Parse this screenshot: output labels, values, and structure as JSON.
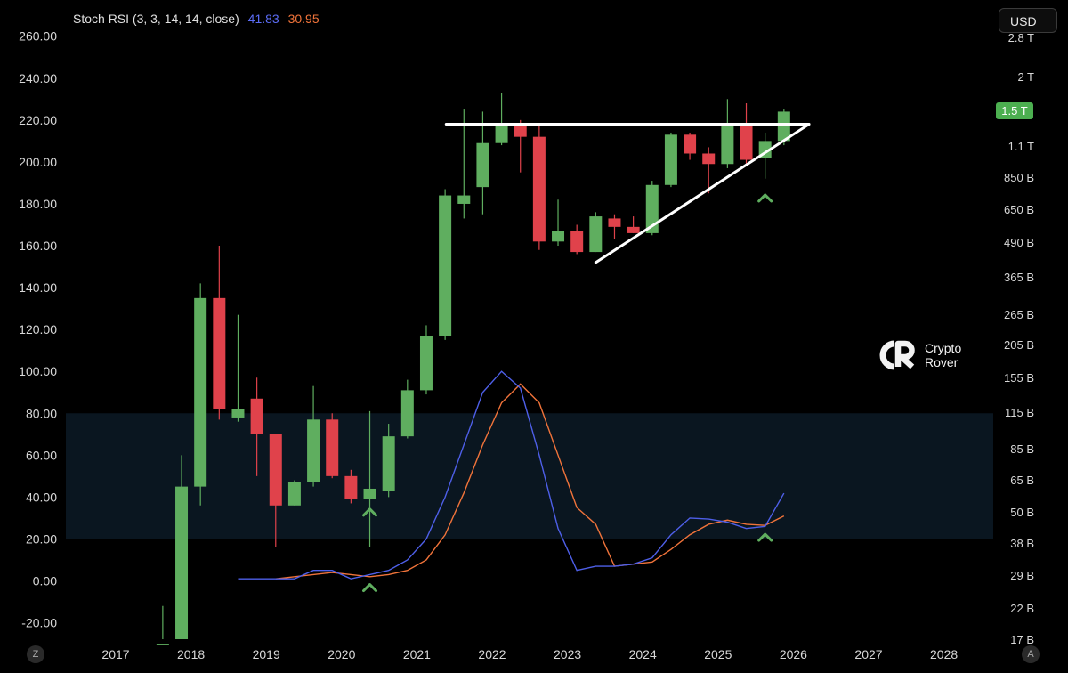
{
  "legend": {
    "name": "Stoch RSI (3, 3, 14, 14, close)",
    "k": "41.83",
    "d": "30.95"
  },
  "currency": "USD",
  "price_badge": "1.5 T",
  "brand": {
    "line1": "Crypto",
    "line2": "Rover"
  },
  "corners": {
    "left": "Z",
    "right": "A"
  },
  "colors": {
    "up": "#5fae5f",
    "down": "#e0424b",
    "k_line": "#4e5fe8",
    "d_line": "#f0733a",
    "zone": "#0a1620",
    "trendline": "#ffffff",
    "marker": "#5fae5f"
  },
  "chart_data": {
    "type": "candlestick",
    "left_axis": {
      "ticks": [
        "260.00",
        "240.00",
        "220.00",
        "200.00",
        "180.00",
        "160.00",
        "140.00",
        "120.00",
        "100.00",
        "80.00",
        "60.00",
        "40.00",
        "20.00",
        "0.00",
        "-20.00"
      ]
    },
    "right_axis": {
      "log_scale": true,
      "ticks": [
        "2.8 T",
        "2 T",
        "1.5 T",
        "1.1 T",
        "850 B",
        "650 B",
        "490 B",
        "365 B",
        "265 B",
        "205 B",
        "155 B",
        "115 B",
        "85 B",
        "65 B",
        "50 B",
        "38 B",
        "29 B",
        "22 B",
        "17 B"
      ]
    },
    "x_axis": {
      "ticks": [
        "2017",
        "2018",
        "2019",
        "2020",
        "2021",
        "2022",
        "2023",
        "2024",
        "2025",
        "2026",
        "2027",
        "2028"
      ]
    },
    "candles": [
      {
        "t": "2017-07",
        "o": -30,
        "h": -12,
        "l": -32,
        "c": -30
      },
      {
        "t": "2017-10",
        "o": -30,
        "h": 60,
        "l": -32,
        "c": 45
      },
      {
        "t": "2018-01",
        "o": 45,
        "h": 142,
        "l": 36,
        "c": 135
      },
      {
        "t": "2018-04",
        "o": 135,
        "h": 160,
        "l": 77,
        "c": 82
      },
      {
        "t": "2018-07",
        "o": 78,
        "h": 127,
        "l": 76,
        "c": 82
      },
      {
        "t": "2018-10",
        "o": 87,
        "h": 97,
        "l": 50,
        "c": 70
      },
      {
        "t": "2019-01",
        "o": 70,
        "h": 70,
        "l": 16,
        "c": 36
      },
      {
        "t": "2019-04",
        "o": 36,
        "h": 48,
        "l": 36,
        "c": 47
      },
      {
        "t": "2019-07",
        "o": 47,
        "h": 93,
        "l": 45,
        "c": 77
      },
      {
        "t": "2019-10",
        "o": 77,
        "h": 80,
        "l": 49,
        "c": 50
      },
      {
        "t": "2020-01",
        "o": 50,
        "h": 53,
        "l": 37,
        "c": 39
      },
      {
        "t": "2020-04",
        "o": 39,
        "h": 81,
        "l": 16,
        "c": 44
      },
      {
        "t": "2020-07",
        "o": 43,
        "h": 75,
        "l": 40,
        "c": 69
      },
      {
        "t": "2020-10",
        "o": 69,
        "h": 96,
        "l": 68,
        "c": 91
      },
      {
        "t": "2021-01",
        "o": 91,
        "h": 122,
        "l": 89,
        "c": 117
      },
      {
        "t": "2021-04",
        "o": 117,
        "h": 187,
        "l": 115,
        "c": 184
      },
      {
        "t": "2021-07",
        "o": 180,
        "h": 225,
        "l": 173,
        "c": 184
      },
      {
        "t": "2021-10",
        "o": 188,
        "h": 224,
        "l": 175,
        "c": 209
      },
      {
        "t": "2022-01",
        "o": 209,
        "h": 233,
        "l": 208,
        "c": 218
      },
      {
        "t": "2022-04",
        "o": 218,
        "h": 220,
        "l": 195,
        "c": 212
      },
      {
        "t": "2022-07",
        "o": 212,
        "h": 217,
        "l": 158,
        "c": 162
      },
      {
        "t": "2022-10",
        "o": 162,
        "h": 182,
        "l": 160,
        "c": 167
      },
      {
        "t": "2023-01",
        "o": 167,
        "h": 170,
        "l": 156,
        "c": 157
      },
      {
        "t": "2023-04",
        "o": 157,
        "h": 176,
        "l": 157,
        "c": 174
      },
      {
        "t": "2023-07",
        "o": 173,
        "h": 175,
        "l": 163,
        "c": 169
      },
      {
        "t": "2023-10",
        "o": 169,
        "h": 174,
        "l": 166,
        "c": 166
      },
      {
        "t": "2024-01",
        "o": 166,
        "h": 191,
        "l": 165,
        "c": 189
      },
      {
        "t": "2024-04",
        "o": 189,
        "h": 214,
        "l": 188,
        "c": 213
      },
      {
        "t": "2024-07",
        "o": 213,
        "h": 214,
        "l": 201,
        "c": 204
      },
      {
        "t": "2024-10",
        "o": 204,
        "h": 207,
        "l": 185,
        "c": 199
      },
      {
        "t": "2025-01",
        "o": 199,
        "h": 230,
        "l": 197,
        "c": 218
      },
      {
        "t": "2025-04",
        "o": 218,
        "h": 228,
        "l": 199,
        "c": 201
      },
      {
        "t": "2025-07",
        "o": 202,
        "h": 214,
        "l": 192,
        "c": 210
      },
      {
        "t": "2025-10",
        "o": 210,
        "h": 225,
        "l": 208,
        "c": 224
      }
    ],
    "stoch_rsi": {
      "zone": [
        20,
        80
      ],
      "k": [
        {
          "t": "2018-07",
          "v": 1
        },
        {
          "t": "2019-01",
          "v": 1
        },
        {
          "t": "2019-04",
          "v": 1
        },
        {
          "t": "2019-07",
          "v": 5
        },
        {
          "t": "2019-10",
          "v": 5
        },
        {
          "t": "2020-01",
          "v": 1
        },
        {
          "t": "2020-04",
          "v": 3
        },
        {
          "t": "2020-07",
          "v": 5
        },
        {
          "t": "2020-10",
          "v": 10
        },
        {
          "t": "2021-01",
          "v": 20
        },
        {
          "t": "2021-04",
          "v": 40
        },
        {
          "t": "2021-07",
          "v": 65
        },
        {
          "t": "2021-10",
          "v": 90
        },
        {
          "t": "2022-01",
          "v": 100
        },
        {
          "t": "2022-04",
          "v": 92
        },
        {
          "t": "2022-07",
          "v": 60
        },
        {
          "t": "2022-10",
          "v": 25
        },
        {
          "t": "2023-01",
          "v": 5
        },
        {
          "t": "2023-04",
          "v": 7
        },
        {
          "t": "2023-07",
          "v": 7
        },
        {
          "t": "2023-10",
          "v": 8
        },
        {
          "t": "2024-01",
          "v": 11
        },
        {
          "t": "2024-04",
          "v": 22
        },
        {
          "t": "2024-07",
          "v": 30
        },
        {
          "t": "2024-10",
          "v": 29.5
        },
        {
          "t": "2025-01",
          "v": 28
        },
        {
          "t": "2025-04",
          "v": 25
        },
        {
          "t": "2025-07",
          "v": 26
        },
        {
          "t": "2025-10",
          "v": 41.83
        }
      ],
      "d": [
        {
          "t": "2019-01",
          "v": 1
        },
        {
          "t": "2019-07",
          "v": 3
        },
        {
          "t": "2019-10",
          "v": 4
        },
        {
          "t": "2020-01",
          "v": 3
        },
        {
          "t": "2020-04",
          "v": 2
        },
        {
          "t": "2020-07",
          "v": 3
        },
        {
          "t": "2020-10",
          "v": 5
        },
        {
          "t": "2021-01",
          "v": 10
        },
        {
          "t": "2021-04",
          "v": 22
        },
        {
          "t": "2021-07",
          "v": 42
        },
        {
          "t": "2021-10",
          "v": 65
        },
        {
          "t": "2022-01",
          "v": 85
        },
        {
          "t": "2022-04",
          "v": 94
        },
        {
          "t": "2022-07",
          "v": 85
        },
        {
          "t": "2022-10",
          "v": 60
        },
        {
          "t": "2023-01",
          "v": 35
        },
        {
          "t": "2023-04",
          "v": 27
        },
        {
          "t": "2023-07",
          "v": 7
        },
        {
          "t": "2023-10",
          "v": 8
        },
        {
          "t": "2024-01",
          "v": 9
        },
        {
          "t": "2024-04",
          "v": 15
        },
        {
          "t": "2024-07",
          "v": 22
        },
        {
          "t": "2024-10",
          "v": 27
        },
        {
          "t": "2025-01",
          "v": 29
        },
        {
          "t": "2025-04",
          "v": 27
        },
        {
          "t": "2025-07",
          "v": 26.5
        },
        {
          "t": "2025-10",
          "v": 30.95
        }
      ]
    },
    "annotations": {
      "resistance": {
        "t1": "2021-07",
        "t2": "2026-02",
        "v": 218
      },
      "support": {
        "t1": "2023-04",
        "v1": 152,
        "t2": "2026-02",
        "v2": 218
      },
      "markers": [
        {
          "t": "2020-04",
          "v": 33
        },
        {
          "t": "2020-04",
          "v": -3
        },
        {
          "t": "2025-07",
          "v": 183
        },
        {
          "t": "2025-07",
          "v": 21
        }
      ]
    }
  }
}
